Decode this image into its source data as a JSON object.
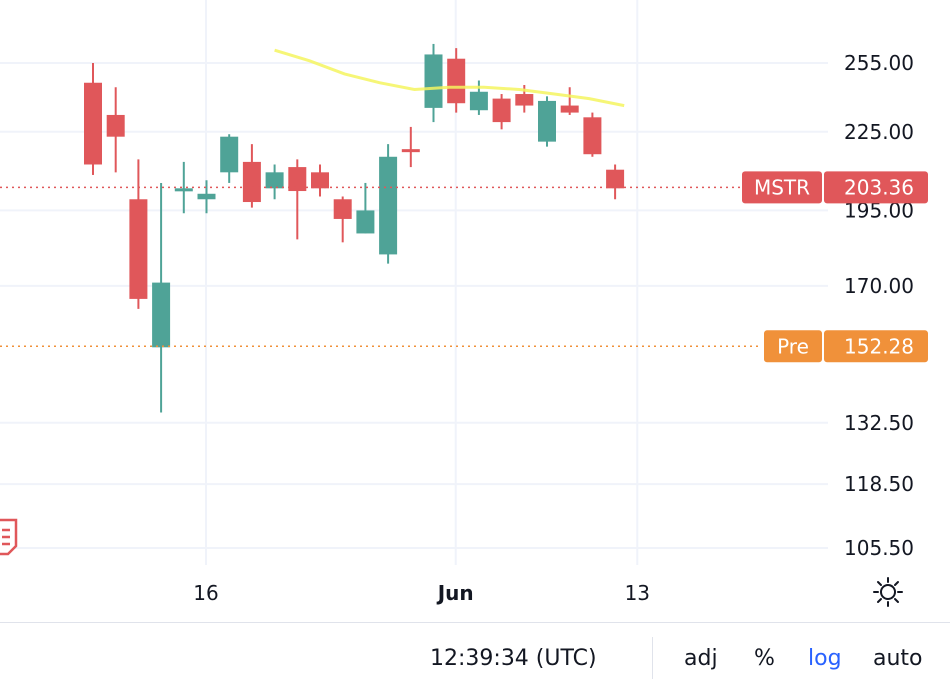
{
  "chart_data": {
    "type": "candlestick",
    "symbol": "MSTR",
    "y_scale": "log",
    "y_ticks": [
      "255.00",
      "225.00",
      "195.00",
      "170.00",
      "132.50",
      "118.50",
      "105.50"
    ],
    "x_ticks": [
      "16",
      "Jun",
      "13"
    ],
    "last_price": {
      "label": "MSTR",
      "value": "203.36",
      "color": "#e0575a"
    },
    "premarket_price": {
      "label": "Pre",
      "value": "152.28",
      "color": "#f0913a"
    },
    "candles": [
      {
        "o": 246,
        "h": 255,
        "l": 208,
        "c": 212
      },
      {
        "o": 232,
        "h": 244,
        "l": 209,
        "c": 223
      },
      {
        "o": 199,
        "h": 214,
        "l": 163,
        "c": 166
      },
      {
        "o": 152,
        "h": 205,
        "l": 135,
        "c": 171
      },
      {
        "o": 202,
        "h": 213,
        "l": 194,
        "c": 203
      },
      {
        "o": 199,
        "h": 206,
        "l": 194,
        "c": 201
      },
      {
        "o": 209,
        "h": 224,
        "l": 205,
        "c": 223
      },
      {
        "o": 213,
        "h": 220,
        "l": 196,
        "c": 198
      },
      {
        "o": 203,
        "h": 212,
        "l": 199,
        "c": 209
      },
      {
        "o": 211,
        "h": 214,
        "l": 185,
        "c": 202
      },
      {
        "o": 209,
        "h": 212,
        "l": 200,
        "c": 203
      },
      {
        "o": 199,
        "h": 200,
        "l": 184,
        "c": 192
      },
      {
        "o": 187,
        "h": 205,
        "l": 187,
        "c": 195
      },
      {
        "o": 180,
        "h": 220,
        "l": 177,
        "c": 215
      },
      {
        "o": 218,
        "h": 227,
        "l": 211,
        "c": 217
      },
      {
        "o": 235,
        "h": 264,
        "l": 229,
        "c": 259
      },
      {
        "o": 257,
        "h": 262,
        "l": 233,
        "c": 237
      },
      {
        "o": 234,
        "h": 247,
        "l": 232,
        "c": 242
      },
      {
        "o": 239,
        "h": 241,
        "l": 226,
        "c": 229
      },
      {
        "o": 241,
        "h": 245,
        "l": 233,
        "c": 236
      },
      {
        "o": 221,
        "h": 240,
        "l": 219,
        "c": 238
      },
      {
        "o": 236,
        "h": 244,
        "l": 232,
        "c": 233
      },
      {
        "o": 231,
        "h": 233,
        "l": 215,
        "c": 216
      },
      {
        "o": 210,
        "h": 212,
        "l": 199,
        "c": 203
      }
    ],
    "moving_average": [
      261,
      256,
      250,
      246,
      243,
      244,
      244,
      243,
      241,
      239,
      236
    ],
    "grid": true
  },
  "footer": {
    "clock": "12:39:34 (UTC)",
    "adj": "adj",
    "percent": "%",
    "log": "log",
    "auto": "auto"
  },
  "icons": {
    "settings": "gear-icon",
    "event_flag": "earnings-flag-icon"
  }
}
